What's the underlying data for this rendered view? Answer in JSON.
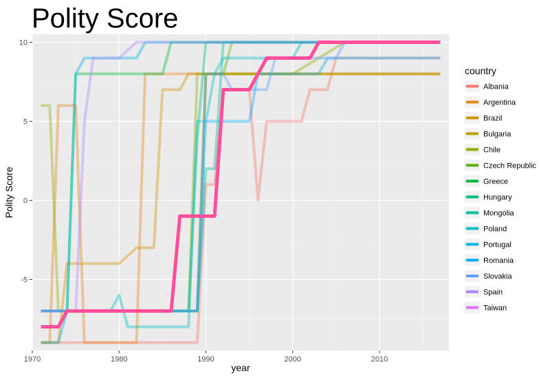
{
  "chart_data": {
    "type": "line",
    "title": "Polity Score",
    "xlabel": "year",
    "ylabel": "Polity Score",
    "xlim": [
      1970,
      2018
    ],
    "ylim": [
      -9.5,
      10.5
    ],
    "x_ticks": [
      1970,
      1980,
      1990,
      2000,
      2010
    ],
    "y_ticks": [
      -5,
      0,
      5,
      10
    ],
    "x_tick_labels": [
      "1970",
      "1980",
      "1990",
      "2000",
      "2010"
    ],
    "y_tick_labels": [
      "-5",
      "0",
      "5",
      "10"
    ],
    "grid": true,
    "legend": {
      "title": "country",
      "placement": "right"
    },
    "highlighted_series": "Taiwan",
    "series": [
      {
        "name": "Albania",
        "color": "#F8766D",
        "points": [
          [
            1971,
            -9
          ],
          [
            1989,
            -9
          ],
          [
            1990,
            1
          ],
          [
            1991,
            1
          ],
          [
            1992,
            7
          ],
          [
            1995,
            7
          ],
          [
            1996,
            0
          ],
          [
            1997,
            5
          ],
          [
            2001,
            5
          ],
          [
            2002,
            7
          ],
          [
            2004,
            7
          ],
          [
            2005,
            9
          ],
          [
            2017,
            9
          ]
        ]
      },
      {
        "name": "Argentina",
        "color": "#E7861B",
        "points": [
          [
            1971,
            -9
          ],
          [
            1972,
            -9
          ],
          [
            1973,
            6
          ],
          [
            1975,
            6
          ],
          [
            1976,
            -9
          ],
          [
            1982,
            -9
          ],
          [
            1983,
            8
          ],
          [
            2017,
            8
          ]
        ]
      },
      {
        "name": "Brazil",
        "color": "#D39200",
        "points": [
          [
            1971,
            -9
          ],
          [
            1973,
            -9
          ],
          [
            1974,
            -4
          ],
          [
            1980,
            -4
          ],
          [
            1982,
            -3
          ],
          [
            1984,
            -3
          ],
          [
            1985,
            7
          ],
          [
            1987,
            7
          ],
          [
            1988,
            8
          ],
          [
            2017,
            8
          ]
        ]
      },
      {
        "name": "Bulgaria",
        "color": "#B79F00",
        "points": [
          [
            1971,
            -7
          ],
          [
            1989,
            -7
          ],
          [
            1990,
            8
          ],
          [
            2017,
            8
          ]
        ]
      },
      {
        "name": "Chile",
        "color": "#93AA00",
        "points": [
          [
            1971,
            6
          ],
          [
            1972,
            6
          ],
          [
            1973,
            -7
          ],
          [
            1988,
            -7
          ],
          [
            1989,
            8
          ],
          [
            2000,
            8
          ],
          [
            2006,
            10
          ],
          [
            2017,
            10
          ]
        ]
      },
      {
        "name": "Czech Republic",
        "color": "#5EB300",
        "points": [
          [
            1971,
            -7
          ],
          [
            1989,
            -7
          ],
          [
            1990,
            8
          ],
          [
            1992,
            8
          ],
          [
            1993,
            10
          ],
          [
            2017,
            10
          ]
        ]
      },
      {
        "name": "Greece",
        "color": "#00BA38",
        "points": [
          [
            1971,
            -7
          ],
          [
            1974,
            -7
          ],
          [
            1975,
            8
          ],
          [
            1985,
            8
          ],
          [
            1986,
            10
          ],
          [
            2017,
            10
          ]
        ]
      },
      {
        "name": "Hungary",
        "color": "#00BF74",
        "points": [
          [
            1971,
            -7
          ],
          [
            1988,
            -7
          ],
          [
            1989,
            4
          ],
          [
            1990,
            10
          ],
          [
            2017,
            10
          ]
        ]
      },
      {
        "name": "Mongolia",
        "color": "#00C19F",
        "points": [
          [
            1971,
            -7
          ],
          [
            1989,
            -7
          ],
          [
            1990,
            2
          ],
          [
            1991,
            2
          ],
          [
            1992,
            10
          ],
          [
            2017,
            10
          ]
        ]
      },
      {
        "name": "Poland",
        "color": "#00BFC4",
        "points": [
          [
            1971,
            -7
          ],
          [
            1979,
            -7
          ],
          [
            1980,
            -6
          ],
          [
            1981,
            -8
          ],
          [
            1988,
            -8
          ],
          [
            1989,
            5
          ],
          [
            1990,
            5
          ],
          [
            1991,
            8
          ],
          [
            1992,
            9
          ],
          [
            2000,
            9
          ],
          [
            2001,
            10
          ],
          [
            2017,
            10
          ]
        ]
      },
      {
        "name": "Portugal",
        "color": "#00B9E3",
        "points": [
          [
            1971,
            -9
          ],
          [
            1973,
            -9
          ],
          [
            1974,
            -7
          ],
          [
            1975,
            8
          ],
          [
            1976,
            9
          ],
          [
            1982,
            9
          ],
          [
            1983,
            10
          ],
          [
            2017,
            10
          ]
        ]
      },
      {
        "name": "Romania",
        "color": "#00ADFA",
        "points": [
          [
            1971,
            -7
          ],
          [
            1989,
            -7
          ],
          [
            1990,
            5
          ],
          [
            1995,
            5
          ],
          [
            1996,
            8
          ],
          [
            2003,
            8
          ],
          [
            2004,
            9
          ],
          [
            2017,
            9
          ]
        ]
      },
      {
        "name": "Slovakia",
        "color": "#619CFF",
        "points": [
          [
            1971,
            -7
          ],
          [
            1989,
            -7
          ],
          [
            1990,
            8
          ],
          [
            1992,
            8
          ],
          [
            1993,
            7
          ],
          [
            1997,
            7
          ],
          [
            1998,
            9
          ],
          [
            2005,
            9
          ],
          [
            2006,
            10
          ],
          [
            2017,
            10
          ]
        ]
      },
      {
        "name": "Spain",
        "color": "#AE87FF",
        "points": [
          [
            1971,
            -7
          ],
          [
            1975,
            -7
          ],
          [
            1976,
            5
          ],
          [
            1977,
            9
          ],
          [
            1980,
            9
          ],
          [
            1982,
            10
          ],
          [
            2017,
            10
          ]
        ]
      },
      {
        "name": "Taiwan",
        "color": "#DB72FB",
        "points": [
          [
            1971,
            -8
          ],
          [
            1973,
            -8
          ],
          [
            1974,
            -7
          ],
          [
            1986,
            -7
          ],
          [
            1987,
            -1
          ],
          [
            1990,
            -1
          ],
          [
            1991,
            -1
          ],
          [
            1992,
            7
          ],
          [
            1995,
            7
          ],
          [
            1997,
            9
          ],
          [
            2002,
            9
          ],
          [
            2003,
            10
          ],
          [
            2017,
            10
          ]
        ]
      }
    ]
  }
}
